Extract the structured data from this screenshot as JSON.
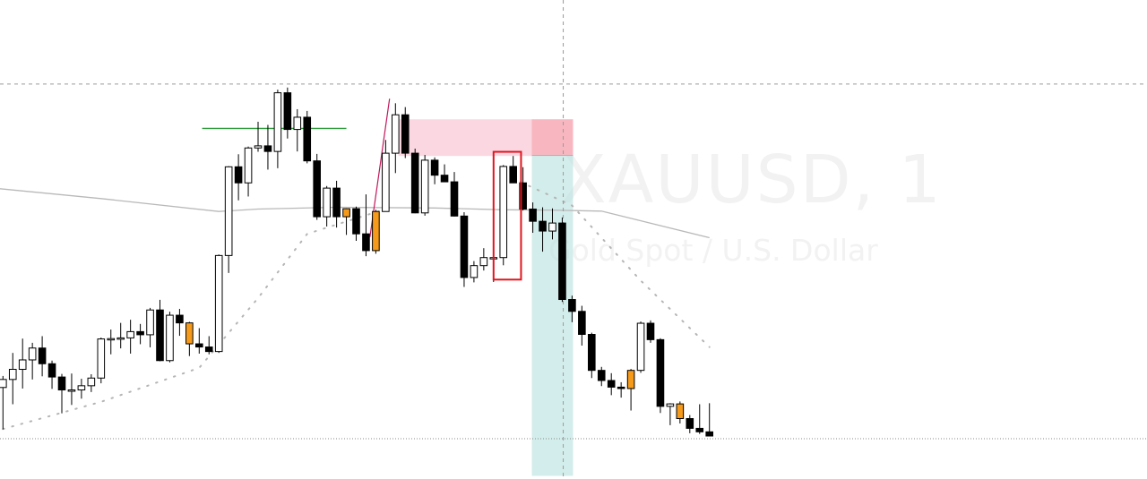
{
  "watermark": {
    "symbol": "XAUUSD, 1",
    "description": "Gold Spot / U.S. Dollar"
  },
  "colors": {
    "bull_body": "#ffffff",
    "bear_body": "#000000",
    "highlight_body": "#f59a1b",
    "wick": "#000000",
    "moving_average": "#b9b9b9",
    "dots": "#b5b5b5",
    "resistance_line": "#2e9b3a",
    "supply_zone": "#f8c9d7",
    "stop_zone": "#f7b4bc",
    "target_zone": "#b4e1dd",
    "signal_box": "#e0161f",
    "crosshair": "#9a9a9a"
  },
  "chart_data": {
    "type": "candlestick",
    "title": "",
    "xlabel": "",
    "ylabel": "",
    "symbol": "XAUUSD",
    "interval": "1",
    "ylim": [
      0,
      100
    ],
    "grid": false,
    "candles": [
      {
        "o": 13.9,
        "h": 17.2,
        "l": 1.9,
        "c": 16.2,
        "hl": false
      },
      {
        "o": 16.2,
        "h": 23.8,
        "l": 9.1,
        "c": 19.1,
        "hl": false
      },
      {
        "o": 19.1,
        "h": 27.9,
        "l": 13.6,
        "c": 21.8,
        "hl": false
      },
      {
        "o": 21.8,
        "h": 26.7,
        "l": 16.2,
        "c": 25.2,
        "hl": false
      },
      {
        "o": 25.2,
        "h": 28.6,
        "l": 17.1,
        "c": 20.7,
        "hl": false
      },
      {
        "o": 20.7,
        "h": 21.6,
        "l": 13.5,
        "c": 16.9,
        "hl": false
      },
      {
        "o": 16.9,
        "h": 17.8,
        "l": 6.5,
        "c": 13.2,
        "hl": false
      },
      {
        "o": 13.2,
        "h": 17.9,
        "l": 8.9,
        "c": 13.2,
        "hl": false
      },
      {
        "o": 13.2,
        "h": 16.4,
        "l": 10.7,
        "c": 14.4,
        "hl": false
      },
      {
        "o": 14.4,
        "h": 17.7,
        "l": 12.6,
        "c": 16.6,
        "hl": false
      },
      {
        "o": 16.6,
        "h": 28.2,
        "l": 15.1,
        "c": 27.8,
        "hl": false
      },
      {
        "o": 27.8,
        "h": 30.5,
        "l": 23.4,
        "c": 27.9,
        "hl": false
      },
      {
        "o": 27.9,
        "h": 32.4,
        "l": 25.1,
        "c": 28.1,
        "hl": false
      },
      {
        "o": 28.1,
        "h": 33.3,
        "l": 23.6,
        "c": 29.9,
        "hl": false
      },
      {
        "o": 29.9,
        "h": 32.1,
        "l": 26.3,
        "c": 29.0,
        "hl": false
      },
      {
        "o": 29.0,
        "h": 36.7,
        "l": 25.4,
        "c": 36.1,
        "hl": false
      },
      {
        "o": 36.1,
        "h": 39.0,
        "l": 21.4,
        "c": 21.6,
        "hl": false
      },
      {
        "o": 21.6,
        "h": 35.6,
        "l": 21.1,
        "c": 34.6,
        "hl": false
      },
      {
        "o": 34.6,
        "h": 36.4,
        "l": 28.7,
        "c": 32.4,
        "hl": false
      },
      {
        "o": 32.4,
        "h": 32.7,
        "l": 22.9,
        "c": 26.4,
        "hl": true
      },
      {
        "o": 26.4,
        "h": 30.9,
        "l": 23.6,
        "c": 25.5,
        "hl": false
      },
      {
        "o": 25.5,
        "h": 28.6,
        "l": 23.4,
        "c": 24.2,
        "hl": false
      },
      {
        "o": 24.2,
        "h": 52.0,
        "l": 23.8,
        "c": 51.7,
        "hl": false
      },
      {
        "o": 51.7,
        "h": 77.3,
        "l": 46.7,
        "c": 77.1,
        "hl": false
      },
      {
        "o": 77.1,
        "h": 80.7,
        "l": 67.5,
        "c": 72.5,
        "hl": false
      },
      {
        "o": 72.5,
        "h": 82.9,
        "l": 68.6,
        "c": 82.5,
        "hl": false
      },
      {
        "o": 82.5,
        "h": 90.0,
        "l": 81.4,
        "c": 83.1,
        "hl": false
      },
      {
        "o": 83.1,
        "h": 89.1,
        "l": 76.3,
        "c": 81.5,
        "hl": false
      },
      {
        "o": 81.5,
        "h": 99.2,
        "l": 76.7,
        "c": 98.3,
        "hl": false
      },
      {
        "o": 98.3,
        "h": 99.8,
        "l": 85.2,
        "c": 87.8,
        "hl": false
      },
      {
        "o": 87.8,
        "h": 93.6,
        "l": 81.5,
        "c": 91.3,
        "hl": false
      },
      {
        "o": 91.3,
        "h": 93.1,
        "l": 78.1,
        "c": 78.8,
        "hl": false
      },
      {
        "o": 78.8,
        "h": 80.8,
        "l": 61.9,
        "c": 62.8,
        "hl": false
      },
      {
        "o": 62.8,
        "h": 71.6,
        "l": 60.0,
        "c": 71.0,
        "hl": false
      },
      {
        "o": 71.0,
        "h": 73.1,
        "l": 59.7,
        "c": 62.8,
        "hl": false
      },
      {
        "o": 62.8,
        "h": 65.2,
        "l": 57.6,
        "c": 65.1,
        "hl": true
      },
      {
        "o": 65.1,
        "h": 65.7,
        "l": 55.9,
        "c": 57.9,
        "hl": false
      },
      {
        "o": 57.9,
        "h": 69.2,
        "l": 51.5,
        "c": 53.1,
        "hl": false
      },
      {
        "o": 53.1,
        "h": 64.8,
        "l": 52.2,
        "c": 64.3,
        "hl": true
      },
      {
        "o": 64.3,
        "h": 84.8,
        "l": 64.3,
        "c": 81.0,
        "hl": false
      },
      {
        "o": 81.0,
        "h": 95.3,
        "l": 75.3,
        "c": 92.0,
        "hl": false
      },
      {
        "o": 92.0,
        "h": 94.2,
        "l": 79.6,
        "c": 81.0,
        "hl": false
      },
      {
        "o": 81.0,
        "h": 82.3,
        "l": 63.8,
        "c": 63.9,
        "hl": false
      },
      {
        "o": 63.9,
        "h": 80.5,
        "l": 63.1,
        "c": 79.0,
        "hl": false
      },
      {
        "o": 79.0,
        "h": 79.8,
        "l": 72.1,
        "c": 74.7,
        "hl": false
      },
      {
        "o": 74.7,
        "h": 77.8,
        "l": 72.9,
        "c": 72.8,
        "hl": false
      },
      {
        "o": 72.8,
        "h": 75.6,
        "l": 62.9,
        "c": 63.0,
        "hl": false
      },
      {
        "o": 63.0,
        "h": 64.1,
        "l": 42.7,
        "c": 45.4,
        "hl": false
      },
      {
        "o": 45.4,
        "h": 50.1,
        "l": 44.0,
        "c": 48.8,
        "hl": false
      },
      {
        "o": 48.8,
        "h": 53.8,
        "l": 47.4,
        "c": 51.1,
        "hl": false
      },
      {
        "o": 51.1,
        "h": 52.6,
        "l": 44.1,
        "c": 51.1,
        "hl": false
      },
      {
        "o": 51.1,
        "h": 77.6,
        "l": 48.9,
        "c": 77.2,
        "hl": false
      },
      {
        "o": 77.2,
        "h": 80.2,
        "l": 72.5,
        "c": 72.5,
        "hl": false
      },
      {
        "o": 72.5,
        "h": 77.0,
        "l": 64.6,
        "c": 65.0,
        "hl": false
      },
      {
        "o": 65.0,
        "h": 66.9,
        "l": 58.2,
        "c": 61.5,
        "hl": false
      },
      {
        "o": 61.5,
        "h": 65.5,
        "l": 52.8,
        "c": 58.7,
        "hl": false
      },
      {
        "o": 58.7,
        "h": 65.2,
        "l": 56.3,
        "c": 61.0,
        "hl": false
      },
      {
        "o": 61.0,
        "h": 62.6,
        "l": 38.4,
        "c": 39.1,
        "hl": false
      },
      {
        "o": 39.1,
        "h": 40.2,
        "l": 32.6,
        "c": 35.7,
        "hl": false
      },
      {
        "o": 35.7,
        "h": 37.3,
        "l": 25.9,
        "c": 29.1,
        "hl": false
      },
      {
        "o": 29.1,
        "h": 29.6,
        "l": 16.6,
        "c": 18.8,
        "hl": false
      },
      {
        "o": 18.8,
        "h": 19.8,
        "l": 14.3,
        "c": 15.9,
        "hl": false
      },
      {
        "o": 15.9,
        "h": 18.0,
        "l": 11.7,
        "c": 14.0,
        "hl": false
      },
      {
        "o": 14.0,
        "h": 15.4,
        "l": 11.0,
        "c": 13.6,
        "hl": false
      },
      {
        "o": 13.6,
        "h": 19.2,
        "l": 7.3,
        "c": 18.8,
        "hl": true
      },
      {
        "o": 18.8,
        "h": 32.8,
        "l": 18.1,
        "c": 32.3,
        "hl": false
      },
      {
        "o": 32.3,
        "h": 33.1,
        "l": 26.7,
        "c": 27.6,
        "hl": false
      },
      {
        "o": 27.6,
        "h": 28.0,
        "l": 6.6,
        "c": 8.5,
        "hl": false
      },
      {
        "o": 8.5,
        "h": 9.4,
        "l": 3.1,
        "c": 9.2,
        "hl": false
      },
      {
        "o": 9.2,
        "h": 9.9,
        "l": 3.6,
        "c": 5.0,
        "hl": true
      },
      {
        "o": 5.0,
        "h": 6.0,
        "l": 0.8,
        "c": 2.2,
        "hl": false
      },
      {
        "o": 2.2,
        "h": 9.1,
        "l": 0.6,
        "c": 1.2,
        "hl": false
      },
      {
        "o": 1.2,
        "h": 9.4,
        "l": 0.0,
        "c": 0.0,
        "hl": false
      }
    ],
    "moving_average": [
      {
        "i": -1,
        "v": 71.0
      },
      {
        "i": 10,
        "v": 68.0
      },
      {
        "i": 22,
        "v": 64.3
      },
      {
        "i": 26,
        "v": 65.0
      },
      {
        "i": 34,
        "v": 65.5
      },
      {
        "i": 44,
        "v": 65.3
      },
      {
        "i": 51,
        "v": 64.8
      },
      {
        "i": 56,
        "v": 64.7
      },
      {
        "i": 61,
        "v": 64.4
      },
      {
        "i": 72,
        "v": 56.8
      }
    ],
    "dotted_curves": [
      [
        {
          "i": 0,
          "v": 2.0
        },
        {
          "i": 10,
          "v": 9.8
        },
        {
          "i": 20,
          "v": 19.5
        },
        {
          "i": 26,
          "v": 39.5
        },
        {
          "i": 31,
          "v": 57.9
        },
        {
          "i": 39,
          "v": 65.0
        }
      ],
      [
        {
          "i": 51,
          "v": 75.0
        },
        {
          "i": 58,
          "v": 66.0
        },
        {
          "i": 65,
          "v": 44.5
        },
        {
          "i": 72,
          "v": 25.5
        }
      ]
    ],
    "resistance": {
      "value": 88.1,
      "from": 20.3,
      "to": 35.0
    },
    "current_price": 0.0,
    "zones": {
      "supply": {
        "from": 40.3,
        "to": 58.1,
        "top": 90.7,
        "bottom": 80.2
      },
      "stop": {
        "from": 53.9,
        "to": 58.1,
        "top": 90.7,
        "bottom": 80.4
      },
      "target": {
        "from": 53.9,
        "to": 58.1,
        "top": 80.4,
        "bottom": -11.4
      }
    },
    "signal_box": {
      "from": 50.0,
      "to": 52.8,
      "top": 81.4,
      "bottom": 44.8
    },
    "crosshair": {
      "i": 57.1,
      "v": 100.8
    }
  }
}
